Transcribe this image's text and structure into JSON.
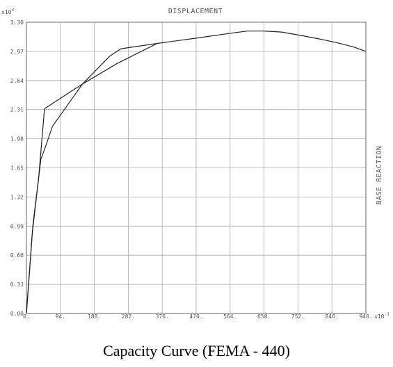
{
  "chart_data": {
    "type": "line",
    "title": "DISPLACEMENT",
    "ylabel": "BASE REACTION",
    "y_multiplier_label": "x10",
    "y_multiplier_exp": "3",
    "x_multiplier_label": "x10",
    "x_multiplier_exp": "-3",
    "caption": "Capacity Curve (FEMA - 440)",
    "xlim": [
      0,
      940
    ],
    "ylim": [
      0,
      3.3
    ],
    "grid": true,
    "x_ticks": [
      "0.",
      "94.",
      "188.",
      "282.",
      "376.",
      "470.",
      "564.",
      "658.",
      "752.",
      "846.",
      "940."
    ],
    "y_ticks": [
      "0.00",
      "0.33",
      "0.66",
      "0.99",
      "1.32",
      "1.65",
      "1.98",
      "2.31",
      "2.64",
      "2.97",
      "3.30"
    ],
    "series": [
      {
        "points": [
          [
            0,
            0
          ],
          [
            18,
            1.0
          ],
          [
            40,
            1.75
          ],
          [
            52,
            1.88
          ],
          [
            72,
            2.12
          ],
          [
            155,
            2.6
          ],
          [
            232,
            2.92
          ],
          [
            262,
            3.0
          ],
          [
            362,
            3.06
          ],
          [
            470,
            3.12
          ],
          [
            574,
            3.18
          ],
          [
            612,
            3.2
          ],
          [
            658,
            3.2
          ],
          [
            705,
            3.19
          ],
          [
            760,
            3.15
          ],
          [
            812,
            3.11
          ],
          [
            858,
            3.07
          ],
          [
            906,
            3.02
          ],
          [
            940,
            2.97
          ]
        ]
      },
      {
        "points": [
          [
            0,
            0
          ],
          [
            16,
            0.9
          ],
          [
            34,
            1.55
          ],
          [
            50,
            2.32
          ],
          [
            155,
            2.6
          ],
          [
            250,
            2.83
          ],
          [
            362,
            3.06
          ]
        ]
      }
    ]
  }
}
